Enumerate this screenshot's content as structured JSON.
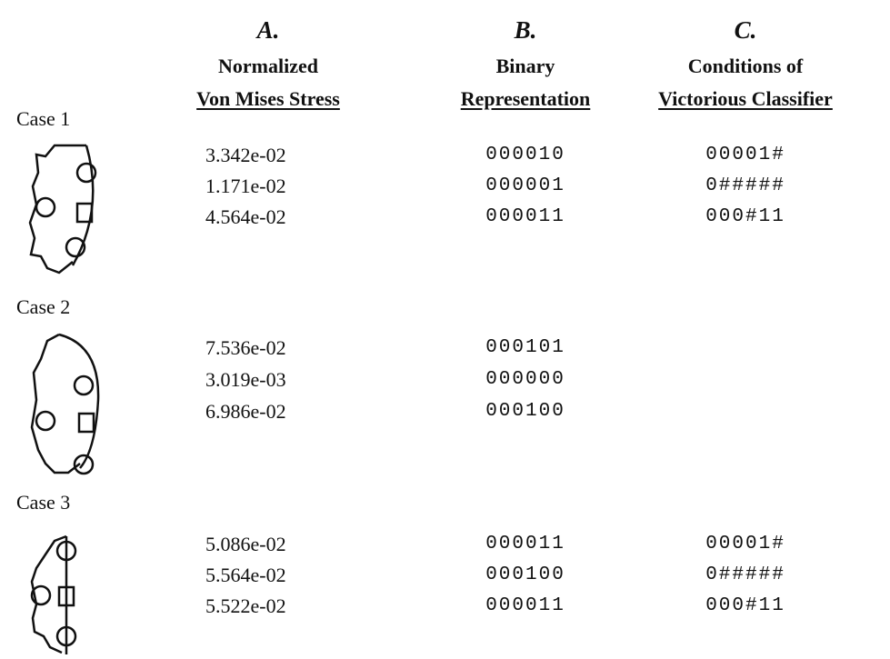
{
  "columns": [
    {
      "letter": "A.",
      "title": [
        "Normalized",
        "Von Mises Stress"
      ]
    },
    {
      "letter": "B.",
      "title": [
        "Binary",
        "Representation"
      ]
    },
    {
      "letter": "C.",
      "title": [
        "Conditions of",
        "Victorious Classifier"
      ]
    }
  ],
  "cases": [
    {
      "label": "Case 1",
      "rows": [
        {
          "stress": "3.342e-02",
          "binary": "000010",
          "conditions": "00001#"
        },
        {
          "stress": "1.171e-02",
          "binary": "000001",
          "conditions": "0#####"
        },
        {
          "stress": "4.564e-02",
          "binary": "000011",
          "conditions": "000#11"
        }
      ]
    },
    {
      "label": "Case 2",
      "rows": [
        {
          "stress": "7.536e-02",
          "binary": "000101"
        },
        {
          "stress": "3.019e-03",
          "binary": "000000"
        },
        {
          "stress": "6.986e-02",
          "binary": "000100"
        }
      ]
    },
    {
      "label": "Case 3",
      "rows": [
        {
          "stress": "5.086e-02",
          "binary": "000011",
          "conditions": "00001#"
        },
        {
          "stress": "5.564e-02",
          "binary": "000100",
          "conditions": "0#####"
        },
        {
          "stress": "5.522e-02",
          "binary": "000011",
          "conditions": "000#11"
        }
      ]
    }
  ]
}
